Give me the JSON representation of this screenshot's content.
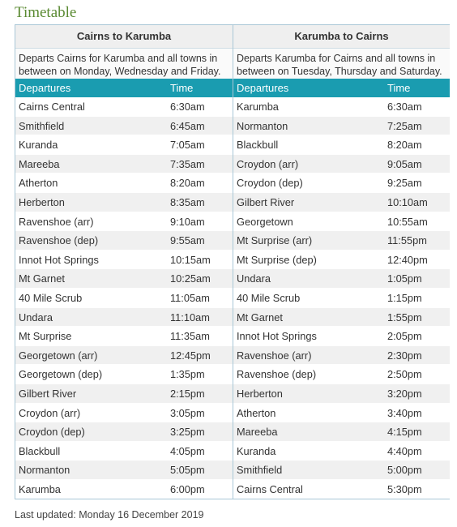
{
  "page_title": "Timetable",
  "left": {
    "title": "Cairns to Karumba",
    "description": "Departs Cairns for Karumba and all towns in between on Monday, Wednesday and Friday.",
    "col_departures": "Departures",
    "col_time": "Time",
    "rows": [
      {
        "stop": "Cairns Central",
        "time": "6:30am"
      },
      {
        "stop": "Smithfield",
        "time": "6:45am"
      },
      {
        "stop": "Kuranda",
        "time": "7:05am"
      },
      {
        "stop": "Mareeba",
        "time": "7:35am"
      },
      {
        "stop": "Atherton",
        "time": "8:20am"
      },
      {
        "stop": "Herberton",
        "time": "8:35am"
      },
      {
        "stop": "Ravenshoe (arr)",
        "time": "9:10am"
      },
      {
        "stop": "Ravenshoe (dep)",
        "time": "9:55am"
      },
      {
        "stop": "Innot Hot Springs",
        "time": "10:15am"
      },
      {
        "stop": "Mt Garnet",
        "time": "10:25am"
      },
      {
        "stop": "40 Mile Scrub",
        "time": "11:05am"
      },
      {
        "stop": "Undara",
        "time": "11:10am"
      },
      {
        "stop": "Mt Surprise",
        "time": "11:35am"
      },
      {
        "stop": "Georgetown (arr)",
        "time": "12:45pm"
      },
      {
        "stop": "Georgetown (dep)",
        "time": "1:35pm"
      },
      {
        "stop": "Gilbert River",
        "time": "2:15pm"
      },
      {
        "stop": "Croydon (arr)",
        "time": "3:05pm"
      },
      {
        "stop": "Croydon (dep)",
        "time": "3:25pm"
      },
      {
        "stop": "Blackbull",
        "time": "4:05pm"
      },
      {
        "stop": "Normanton",
        "time": "5:05pm"
      },
      {
        "stop": "Karumba",
        "time": "6:00pm"
      }
    ]
  },
  "right": {
    "title": "Karumba to Cairns",
    "description": "Departs Karumba for Cairns and all towns in between on Tuesday, Thursday and Saturday.",
    "col_departures": "Departures",
    "col_time": "Time",
    "rows": [
      {
        "stop": "Karumba",
        "time": "6:30am"
      },
      {
        "stop": "Normanton",
        "time": "7:25am"
      },
      {
        "stop": "Blackbull",
        "time": "8:20am"
      },
      {
        "stop": "Croydon (arr)",
        "time": "9:05am"
      },
      {
        "stop": "Croydon (dep)",
        "time": "9:25am"
      },
      {
        "stop": "Gilbert River",
        "time": "10:10am"
      },
      {
        "stop": "Georgetown",
        "time": "10:55am"
      },
      {
        "stop": "Mt Surprise (arr)",
        "time": "11:55pm"
      },
      {
        "stop": "Mt Surprise (dep)",
        "time": "12:40pm"
      },
      {
        "stop": "Undara",
        "time": "1:05pm"
      },
      {
        "stop": "40 Mile Scrub",
        "time": "1:15pm"
      },
      {
        "stop": "Mt Garnet",
        "time": "1:55pm"
      },
      {
        "stop": "Innot Hot Springs",
        "time": "2:05pm"
      },
      {
        "stop": "Ravenshoe (arr)",
        "time": "2:30pm"
      },
      {
        "stop": "Ravenshoe (dep)",
        "time": "2:50pm"
      },
      {
        "stop": "Herberton",
        "time": "3:20pm"
      },
      {
        "stop": "Atherton",
        "time": "3:40pm"
      },
      {
        "stop": "Mareeba",
        "time": "4:15pm"
      },
      {
        "stop": "Kuranda",
        "time": "4:40pm"
      },
      {
        "stop": "Smithfield",
        "time": "5:00pm"
      },
      {
        "stop": "Cairns Central",
        "time": "5:30pm"
      }
    ]
  },
  "last_updated": "Last updated: Monday 16 December 2019",
  "colors": {
    "title_green": "#5a8a32",
    "header_teal": "#1a9cb0",
    "border_blue": "#a9c7d6",
    "row_alt": "#f0f0f0"
  }
}
